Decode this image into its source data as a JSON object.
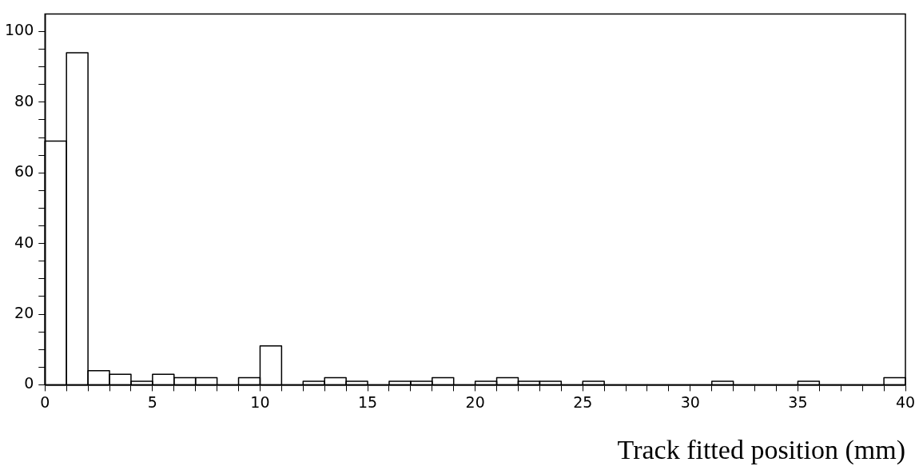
{
  "chart_data": {
    "type": "histogram",
    "xlabel": "Track fitted position (mm)",
    "bins": [
      0,
      1,
      2,
      3,
      4,
      5,
      6,
      7,
      8,
      9,
      10,
      11,
      12,
      13,
      14,
      15,
      16,
      17,
      18,
      19,
      20,
      21,
      22,
      23,
      24,
      25,
      26,
      27,
      28,
      29,
      30,
      31,
      32,
      33,
      34,
      35,
      36,
      37,
      38,
      39,
      40
    ],
    "values": [
      69,
      94,
      4,
      3,
      1,
      3,
      2,
      2,
      0,
      2,
      11,
      0,
      1,
      2,
      1,
      0,
      1,
      1,
      2,
      0,
      1,
      2,
      1,
      1,
      0,
      1,
      0,
      0,
      0,
      0,
      0,
      1,
      0,
      0,
      0,
      1,
      0,
      0,
      0,
      2
    ],
    "color": "#000000",
    "xlim": [
      0,
      40
    ],
    "xticks": [
      0,
      {
        "value": 1,
        "label": null
      },
      {
        "value": 2,
        "label": null
      },
      {
        "value": 3,
        "label": null
      },
      {
        "value": 4,
        "label": null
      },
      5,
      {
        "value": 6,
        "label": null
      },
      {
        "value": 7,
        "label": null
      },
      {
        "value": 8,
        "label": null
      },
      {
        "value": 9,
        "label": null
      },
      10,
      {
        "value": 11,
        "label": null
      },
      {
        "value": 12,
        "label": null
      },
      {
        "value": 13,
        "label": null
      },
      {
        "value": 14,
        "label": null
      },
      15,
      {
        "value": 16,
        "label": null
      },
      {
        "value": 17,
        "label": null
      },
      {
        "value": 18,
        "label": null
      },
      {
        "value": 19,
        "label": null
      },
      20,
      {
        "value": 21,
        "label": null
      },
      {
        "value": 22,
        "label": null
      },
      {
        "value": 23,
        "label": null
      },
      {
        "value": 24,
        "label": null
      },
      25,
      {
        "value": 26,
        "label": null
      },
      {
        "value": 27,
        "label": null
      },
      {
        "value": 28,
        "label": null
      },
      {
        "value": 29,
        "label": null
      },
      30,
      {
        "value": 31,
        "label": null
      },
      {
        "value": 32,
        "label": null
      },
      {
        "value": 33,
        "label": null
      },
      {
        "value": 34,
        "label": null
      },
      35,
      {
        "value": 36,
        "label": null
      },
      {
        "value": 37,
        "label": null
      },
      {
        "value": 38,
        "label": null
      },
      {
        "value": 39,
        "label": null
      },
      40
    ],
    "ylim": [
      0,
      105
    ],
    "yticks": [
      0,
      {
        "value": 5,
        "label": null
      },
      {
        "value": 10,
        "label": null
      },
      {
        "value": 15,
        "label": null
      },
      20,
      {
        "value": 25,
        "label": null
      },
      {
        "value": 30,
        "label": null
      },
      {
        "value": 35,
        "label": null
      },
      40,
      {
        "value": 45,
        "label": null
      },
      {
        "value": 50,
        "label": null
      },
      {
        "value": 55,
        "label": null
      },
      60,
      {
        "value": 65,
        "label": null
      },
      {
        "value": 70,
        "label": null
      },
      {
        "value": 75,
        "label": null
      },
      80,
      {
        "value": 85,
        "label": null
      },
      {
        "value": 90,
        "label": null
      },
      {
        "value": 95,
        "label": null
      },
      100
    ],
    "grid": false,
    "legend": false
  }
}
